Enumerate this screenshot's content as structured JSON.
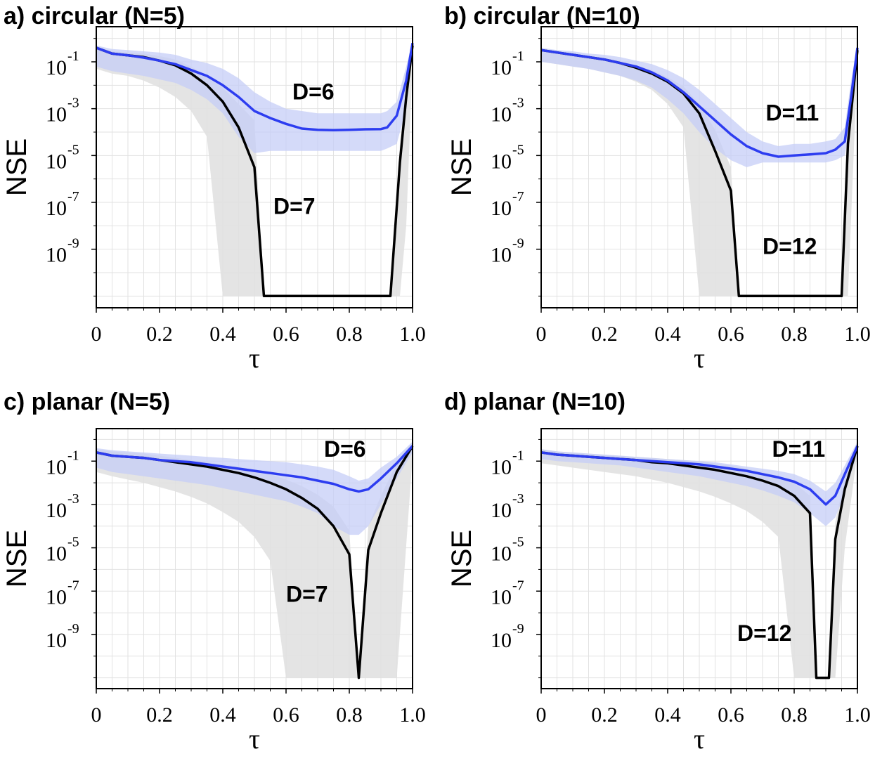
{
  "chart_data": [
    {
      "panel": "a)",
      "title": "circular (N=5)",
      "type": "line",
      "xlabel": "τ",
      "ylabel": "NSE",
      "xlim": [
        0,
        1
      ],
      "ylim_log10": [
        -11.5,
        0.5
      ],
      "xticks": [
        "0",
        "0.2",
        "0.4",
        "0.6",
        "0.8",
        "1.0"
      ],
      "yticks": [
        {
          "base": "10",
          "exp": "-1"
        },
        {
          "base": "10",
          "exp": "-3"
        },
        {
          "base": "10",
          "exp": "-5"
        },
        {
          "base": "10",
          "exp": "-7"
        },
        {
          "base": "10",
          "exp": "-9"
        }
      ],
      "grid": true,
      "series": [
        {
          "name": "D=6",
          "color": "#2d3df0",
          "band_color": "#c5cdf7",
          "x": [
            0,
            0.05,
            0.1,
            0.15,
            0.2,
            0.25,
            0.3,
            0.35,
            0.4,
            0.45,
            0.5,
            0.55,
            0.6,
            0.65,
            0.7,
            0.75,
            0.8,
            0.85,
            0.9,
            0.92,
            0.95,
            0.98,
            1.0
          ],
          "log10_y": [
            -0.4,
            -0.65,
            -0.72,
            -0.82,
            -0.95,
            -1.1,
            -1.35,
            -1.6,
            -2.0,
            -2.5,
            -3.1,
            -3.4,
            -3.65,
            -3.85,
            -3.9,
            -3.92,
            -3.9,
            -3.88,
            -3.87,
            -3.8,
            -3.3,
            -1.8,
            -0.2
          ],
          "band_lo": [
            -1.2,
            -1.4,
            -1.5,
            -1.6,
            -1.75,
            -1.9,
            -2.2,
            -2.6,
            -3.2,
            -4.2,
            -4.9,
            -4.8,
            -4.8,
            -4.8,
            -4.8,
            -4.8,
            -4.8,
            -4.8,
            -4.8,
            -4.7,
            -4.5,
            -3.0,
            -0.5
          ],
          "band_hi": [
            -0.3,
            -0.45,
            -0.5,
            -0.55,
            -0.6,
            -0.7,
            -0.9,
            -1.05,
            -1.3,
            -1.7,
            -2.3,
            -2.7,
            -3.0,
            -3.1,
            -3.2,
            -3.2,
            -3.2,
            -3.2,
            -3.2,
            -3.1,
            -2.7,
            -1.2,
            -0.1
          ],
          "label_pos": [
            0.62,
            -2.6
          ]
        },
        {
          "name": "D=7",
          "color": "#000000",
          "band_color": "#e1e1e1",
          "x": [
            0,
            0.05,
            0.1,
            0.15,
            0.2,
            0.25,
            0.3,
            0.35,
            0.4,
            0.45,
            0.5,
            0.53,
            0.6,
            0.7,
            0.8,
            0.9,
            0.93,
            0.96,
            0.98,
            1.0
          ],
          "log10_y": [
            -0.4,
            -0.65,
            -0.72,
            -0.8,
            -0.95,
            -1.15,
            -1.5,
            -2.0,
            -2.7,
            -3.8,
            -5.5,
            -11.0,
            -11.0,
            -11.0,
            -11.0,
            -11.0,
            -11.0,
            -5.3,
            -2.5,
            -0.3
          ],
          "band_lo": [
            -1.3,
            -1.5,
            -1.6,
            -1.8,
            -2.1,
            -2.5,
            -3.1,
            -4.2,
            -11.0,
            -11.0,
            -11.0,
            -11.0,
            -11.0,
            -11.0,
            -11.0,
            -11.0,
            -11.0,
            -11.0,
            -8.0,
            -1.0
          ],
          "band_hi": [
            -0.35,
            -0.55,
            -0.6,
            -0.65,
            -0.75,
            -0.9,
            -1.2,
            -1.6,
            -2.1,
            -2.8,
            -3.5,
            -11.0,
            -11.0,
            -11.0,
            -11.0,
            -11.0,
            -11.0,
            -4.5,
            -2.0,
            -0.1
          ],
          "label_pos": [
            0.56,
            -7.5
          ]
        }
      ]
    },
    {
      "panel": "b)",
      "title": "circular (N=10)",
      "type": "line",
      "xlabel": "τ",
      "ylabel": "NSE",
      "xlim": [
        0,
        1
      ],
      "ylim_log10": [
        -11.5,
        0.5
      ],
      "xticks": [
        "0",
        "0.2",
        "0.4",
        "0.6",
        "0.8",
        "1.0"
      ],
      "yticks": [
        {
          "base": "10",
          "exp": "-1"
        },
        {
          "base": "10",
          "exp": "-3"
        },
        {
          "base": "10",
          "exp": "-5"
        },
        {
          "base": "10",
          "exp": "-7"
        },
        {
          "base": "10",
          "exp": "-9"
        }
      ],
      "grid": true,
      "series": [
        {
          "name": "D=11",
          "color": "#2d3df0",
          "band_color": "#c5cdf7",
          "x": [
            0,
            0.05,
            0.1,
            0.15,
            0.2,
            0.25,
            0.3,
            0.35,
            0.4,
            0.45,
            0.5,
            0.55,
            0.6,
            0.65,
            0.7,
            0.75,
            0.8,
            0.85,
            0.9,
            0.93,
            0.96,
            0.98,
            1.0
          ],
          "log10_y": [
            -0.5,
            -0.6,
            -0.7,
            -0.8,
            -0.9,
            -1.05,
            -1.2,
            -1.45,
            -1.8,
            -2.3,
            -2.9,
            -3.5,
            -4.1,
            -4.6,
            -4.9,
            -5.05,
            -5.0,
            -4.95,
            -4.9,
            -4.75,
            -4.4,
            -2.5,
            -0.4
          ],
          "band_lo": [
            -1.0,
            -1.1,
            -1.2,
            -1.3,
            -1.45,
            -1.6,
            -1.8,
            -2.1,
            -2.6,
            -3.2,
            -4.0,
            -4.7,
            -5.2,
            -5.5,
            -5.3,
            -5.3,
            -5.3,
            -5.3,
            -5.3,
            -5.2,
            -5.0,
            -3.5,
            -0.8
          ],
          "band_hi": [
            -0.4,
            -0.5,
            -0.55,
            -0.65,
            -0.7,
            -0.8,
            -0.95,
            -1.1,
            -1.35,
            -1.7,
            -2.2,
            -2.8,
            -3.4,
            -4.0,
            -4.4,
            -4.6,
            -4.5,
            -4.5,
            -4.4,
            -4.3,
            -3.8,
            -1.8,
            -0.2
          ],
          "label_pos": [
            0.71,
            -3.5
          ]
        },
        {
          "name": "D=12",
          "color": "#000000",
          "band_color": "#e1e1e1",
          "x": [
            0,
            0.05,
            0.1,
            0.15,
            0.2,
            0.25,
            0.3,
            0.35,
            0.4,
            0.45,
            0.5,
            0.55,
            0.6,
            0.625,
            0.7,
            0.8,
            0.9,
            0.95,
            0.97,
            1.0
          ],
          "log10_y": [
            -0.5,
            -0.6,
            -0.7,
            -0.8,
            -0.9,
            -1.05,
            -1.25,
            -1.5,
            -1.85,
            -2.35,
            -3.2,
            -4.8,
            -6.5,
            -11.0,
            -11.0,
            -11.0,
            -11.0,
            -11.0,
            -4.5,
            -0.5
          ],
          "band_lo": [
            -1.0,
            -1.1,
            -1.2,
            -1.3,
            -1.45,
            -1.6,
            -1.85,
            -2.2,
            -2.8,
            -3.8,
            -11.0,
            -11.0,
            -11.0,
            -11.0,
            -11.0,
            -11.0,
            -11.0,
            -11.0,
            -11.0,
            -1.0
          ],
          "band_hi": [
            -0.45,
            -0.55,
            -0.65,
            -0.75,
            -0.85,
            -0.95,
            -1.15,
            -1.35,
            -1.65,
            -2.05,
            -2.8,
            -3.9,
            -5.5,
            -11.0,
            -11.0,
            -11.0,
            -11.0,
            -11.0,
            -4.0,
            -0.3
          ],
          "label_pos": [
            0.7,
            -9.2
          ]
        }
      ]
    },
    {
      "panel": "c)",
      "title": "planar (N=5)",
      "type": "line",
      "xlabel": "τ",
      "ylabel": "NSE",
      "xlim": [
        0,
        1
      ],
      "ylim_log10": [
        -11.5,
        0.5
      ],
      "xticks": [
        "0",
        "0.2",
        "0.4",
        "0.6",
        "0.8",
        "1.0"
      ],
      "yticks": [
        {
          "base": "10",
          "exp": "-1"
        },
        {
          "base": "10",
          "exp": "-3"
        },
        {
          "base": "10",
          "exp": "-5"
        },
        {
          "base": "10",
          "exp": "-7"
        },
        {
          "base": "10",
          "exp": "-9"
        }
      ],
      "grid": true,
      "series": [
        {
          "name": "D=6",
          "color": "#2d3df0",
          "band_color": "#c5cdf7",
          "x": [
            0,
            0.05,
            0.1,
            0.15,
            0.2,
            0.25,
            0.3,
            0.35,
            0.4,
            0.45,
            0.5,
            0.55,
            0.6,
            0.65,
            0.7,
            0.75,
            0.8,
            0.83,
            0.86,
            0.9,
            0.95,
            1.0
          ],
          "log10_y": [
            -0.6,
            -0.75,
            -0.8,
            -0.85,
            -0.95,
            -1.0,
            -1.05,
            -1.15,
            -1.25,
            -1.35,
            -1.45,
            -1.55,
            -1.65,
            -1.75,
            -1.9,
            -2.05,
            -2.3,
            -2.4,
            -2.3,
            -1.8,
            -1.1,
            -0.3
          ],
          "band_lo": [
            -1.3,
            -1.5,
            -1.6,
            -1.7,
            -1.8,
            -1.9,
            -2.0,
            -2.1,
            -2.25,
            -2.4,
            -2.55,
            -2.7,
            -2.85,
            -3.1,
            -3.4,
            -4.0,
            -4.4,
            -4.4,
            -4.0,
            -3.0,
            -1.8,
            -0.6
          ],
          "band_hi": [
            -0.4,
            -0.5,
            -0.55,
            -0.6,
            -0.65,
            -0.7,
            -0.75,
            -0.8,
            -0.85,
            -0.9,
            -0.95,
            -1.0,
            -1.05,
            -1.15,
            -1.25,
            -1.4,
            -1.7,
            -1.9,
            -1.8,
            -1.3,
            -0.8,
            -0.1
          ],
          "label_pos": [
            0.72,
            -0.8
          ]
        },
        {
          "name": "D=7",
          "color": "#000000",
          "band_color": "#e1e1e1",
          "x": [
            0,
            0.05,
            0.1,
            0.15,
            0.2,
            0.25,
            0.3,
            0.35,
            0.4,
            0.45,
            0.5,
            0.55,
            0.6,
            0.65,
            0.7,
            0.75,
            0.8,
            0.83,
            0.86,
            0.9,
            0.95,
            1.0
          ],
          "log10_y": [
            -0.6,
            -0.75,
            -0.8,
            -0.85,
            -0.95,
            -1.05,
            -1.15,
            -1.25,
            -1.4,
            -1.55,
            -1.75,
            -2.0,
            -2.3,
            -2.7,
            -3.2,
            -4.0,
            -5.3,
            -11.0,
            -5.1,
            -3.4,
            -1.5,
            -0.3
          ],
          "band_lo": [
            -1.5,
            -1.7,
            -1.85,
            -2.0,
            -2.2,
            -2.4,
            -2.65,
            -2.95,
            -3.35,
            -3.8,
            -4.5,
            -5.6,
            -11.0,
            -11.0,
            -11.0,
            -11.0,
            -11.0,
            -11.0,
            -11.0,
            -11.0,
            -11.0,
            -0.8
          ],
          "band_hi": [
            -0.45,
            -0.55,
            -0.6,
            -0.65,
            -0.75,
            -0.85,
            -0.95,
            -1.05,
            -1.15,
            -1.25,
            -1.4,
            -1.6,
            -1.85,
            -2.15,
            -2.55,
            -3.1,
            -4.2,
            -11.0,
            -4.0,
            -2.6,
            -1.1,
            -0.1
          ],
          "label_pos": [
            0.6,
            -7.5
          ]
        }
      ]
    },
    {
      "panel": "d)",
      "title": "planar (N=10)",
      "type": "line",
      "xlabel": "τ",
      "ylabel": "NSE",
      "xlim": [
        0,
        1
      ],
      "ylim_log10": [
        -11.5,
        0.5
      ],
      "xticks": [
        "0",
        "0.2",
        "0.4",
        "0.6",
        "0.8",
        "1.0"
      ],
      "yticks": [
        {
          "base": "10",
          "exp": "-1"
        },
        {
          "base": "10",
          "exp": "-3"
        },
        {
          "base": "10",
          "exp": "-5"
        },
        {
          "base": "10",
          "exp": "-7"
        },
        {
          "base": "10",
          "exp": "-9"
        }
      ],
      "grid": true,
      "series": [
        {
          "name": "D=11",
          "color": "#2d3df0",
          "band_color": "#c5cdf7",
          "x": [
            0,
            0.05,
            0.1,
            0.15,
            0.2,
            0.25,
            0.3,
            0.35,
            0.4,
            0.45,
            0.5,
            0.55,
            0.6,
            0.65,
            0.7,
            0.75,
            0.8,
            0.85,
            0.9,
            0.93,
            0.96,
            1.0
          ],
          "log10_y": [
            -0.6,
            -0.7,
            -0.75,
            -0.8,
            -0.85,
            -0.9,
            -0.95,
            -1.0,
            -1.05,
            -1.1,
            -1.15,
            -1.25,
            -1.35,
            -1.45,
            -1.6,
            -1.75,
            -1.95,
            -2.3,
            -3.0,
            -2.6,
            -1.6,
            -0.3
          ],
          "band_lo": [
            -0.9,
            -1.0,
            -1.05,
            -1.1,
            -1.15,
            -1.2,
            -1.3,
            -1.4,
            -1.5,
            -1.6,
            -1.7,
            -1.85,
            -2.0,
            -2.15,
            -2.35,
            -2.6,
            -2.9,
            -3.4,
            -4.0,
            -3.6,
            -2.5,
            -0.6
          ],
          "band_hi": [
            -0.45,
            -0.55,
            -0.6,
            -0.65,
            -0.7,
            -0.75,
            -0.8,
            -0.85,
            -0.9,
            -0.95,
            -1.0,
            -1.05,
            -1.15,
            -1.25,
            -1.35,
            -1.45,
            -1.6,
            -1.9,
            -2.4,
            -2.0,
            -1.2,
            -0.1
          ],
          "label_pos": [
            0.73,
            -0.8
          ]
        },
        {
          "name": "D=12",
          "color": "#000000",
          "band_color": "#e1e1e1",
          "x": [
            0,
            0.05,
            0.1,
            0.15,
            0.2,
            0.25,
            0.3,
            0.35,
            0.4,
            0.45,
            0.5,
            0.55,
            0.6,
            0.65,
            0.7,
            0.75,
            0.8,
            0.85,
            0.87,
            0.91,
            0.93,
            0.96,
            1.0
          ],
          "log10_y": [
            -0.6,
            -0.7,
            -0.75,
            -0.8,
            -0.85,
            -0.9,
            -0.95,
            -1.05,
            -1.1,
            -1.2,
            -1.3,
            -1.4,
            -1.55,
            -1.7,
            -1.9,
            -2.15,
            -2.6,
            -3.4,
            -11.0,
            -11.0,
            -4.6,
            -2.3,
            -0.3
          ],
          "band_lo": [
            -1.1,
            -1.2,
            -1.3,
            -1.4,
            -1.5,
            -1.6,
            -1.7,
            -1.85,
            -2.0,
            -2.2,
            -2.4,
            -2.65,
            -2.95,
            -3.3,
            -3.8,
            -4.5,
            -11.0,
            -11.0,
            -11.0,
            -11.0,
            -11.0,
            -5.0,
            -0.6
          ],
          "band_hi": [
            -0.45,
            -0.55,
            -0.6,
            -0.65,
            -0.7,
            -0.75,
            -0.8,
            -0.85,
            -0.9,
            -0.95,
            -1.0,
            -1.1,
            -1.2,
            -1.35,
            -1.5,
            -1.7,
            -2.0,
            -2.6,
            -11.0,
            -11.0,
            -3.8,
            -1.8,
            -0.1
          ],
          "label_pos": [
            0.62,
            -9.3
          ]
        }
      ]
    }
  ]
}
